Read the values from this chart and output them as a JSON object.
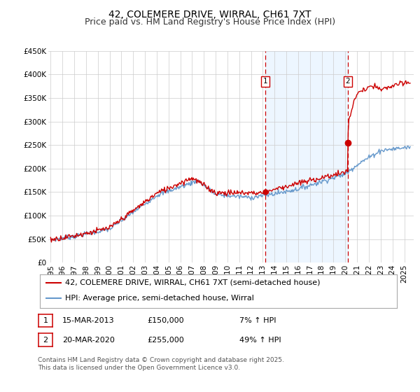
{
  "title": "42, COLEMERE DRIVE, WIRRAL, CH61 7XT",
  "subtitle": "Price paid vs. HM Land Registry's House Price Index (HPI)",
  "ylim": [
    0,
    450000
  ],
  "yticks": [
    0,
    50000,
    100000,
    150000,
    200000,
    250000,
    300000,
    350000,
    400000,
    450000
  ],
  "ytick_labels": [
    "£0",
    "£50K",
    "£100K",
    "£150K",
    "£200K",
    "£250K",
    "£300K",
    "£350K",
    "£400K",
    "£450K"
  ],
  "xlim_start": 1994.8,
  "xlim_end": 2025.8,
  "xticks": [
    1995,
    1996,
    1997,
    1998,
    1999,
    2000,
    2001,
    2002,
    2003,
    2004,
    2005,
    2006,
    2007,
    2008,
    2009,
    2010,
    2011,
    2012,
    2013,
    2014,
    2015,
    2016,
    2017,
    2018,
    2019,
    2020,
    2021,
    2022,
    2023,
    2024,
    2025
  ],
  "background_color": "#ffffff",
  "plot_bg_color": "#ffffff",
  "red_line_color": "#cc0000",
  "blue_line_color": "#6699cc",
  "vline_color": "#cc0000",
  "annotation1_year": 2013.2,
  "annotation2_year": 2020.2,
  "sale1_value": 150000,
  "sale2_value": 255000,
  "legend_line1": "42, COLEMERE DRIVE, WIRRAL, CH61 7XT (semi-detached house)",
  "legend_line2": "HPI: Average price, semi-detached house, Wirral",
  "table_row1": [
    "1",
    "15-MAR-2013",
    "£150,000",
    "7% ↑ HPI"
  ],
  "table_row2": [
    "2",
    "20-MAR-2020",
    "£255,000",
    "49% ↑ HPI"
  ],
  "footnote": "Contains HM Land Registry data © Crown copyright and database right 2025.\nThis data is licensed under the Open Government Licence v3.0.",
  "title_fontsize": 10,
  "subtitle_fontsize": 9,
  "tick_fontsize": 7.5,
  "legend_fontsize": 8,
  "table_fontsize": 8,
  "footnote_fontsize": 6.5,
  "grid_color": "#cccccc",
  "span_color": "#ddeeff",
  "span_alpha": 0.5
}
